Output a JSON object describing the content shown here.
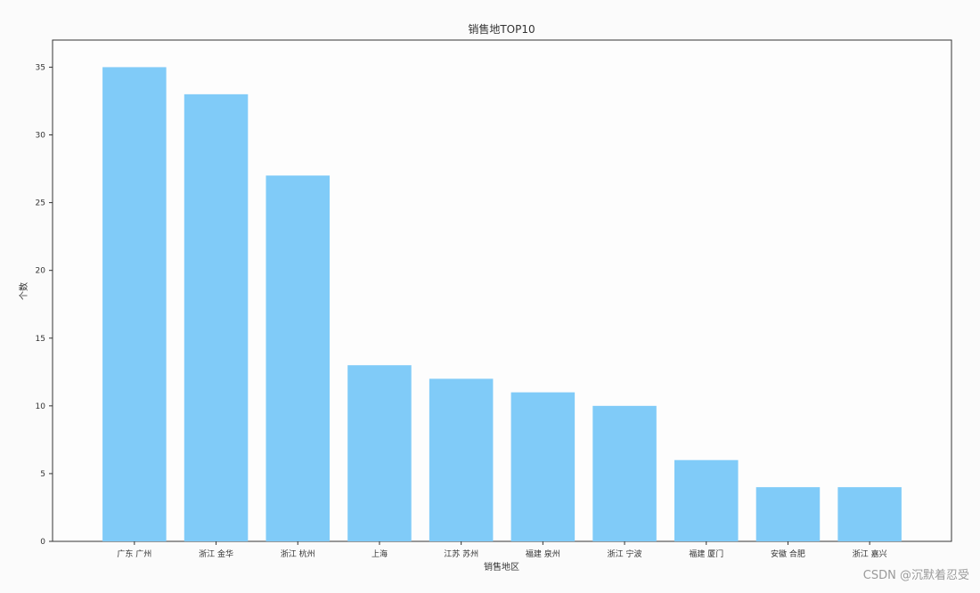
{
  "chart_data": {
    "type": "bar",
    "title": "销售地TOP10",
    "xlabel": "销售地区",
    "ylabel": "个数",
    "categories": [
      "广东 广州",
      "浙江 金华",
      "浙江 杭州",
      "上海",
      "江苏 苏州",
      "福建 泉州",
      "浙江 宁波",
      "福建 厦门",
      "安徽 合肥",
      "浙江 嘉兴"
    ],
    "values": [
      35,
      33,
      27,
      13,
      12,
      11,
      10,
      6,
      4,
      4
    ],
    "ylim": [
      0,
      37
    ],
    "yticks": [
      0,
      5,
      10,
      15,
      20,
      25,
      30,
      35
    ],
    "grid": false,
    "bar_color": "#80cbf8",
    "axis_color": "#333333"
  },
  "watermark": "CSDN @沉默着忍受"
}
